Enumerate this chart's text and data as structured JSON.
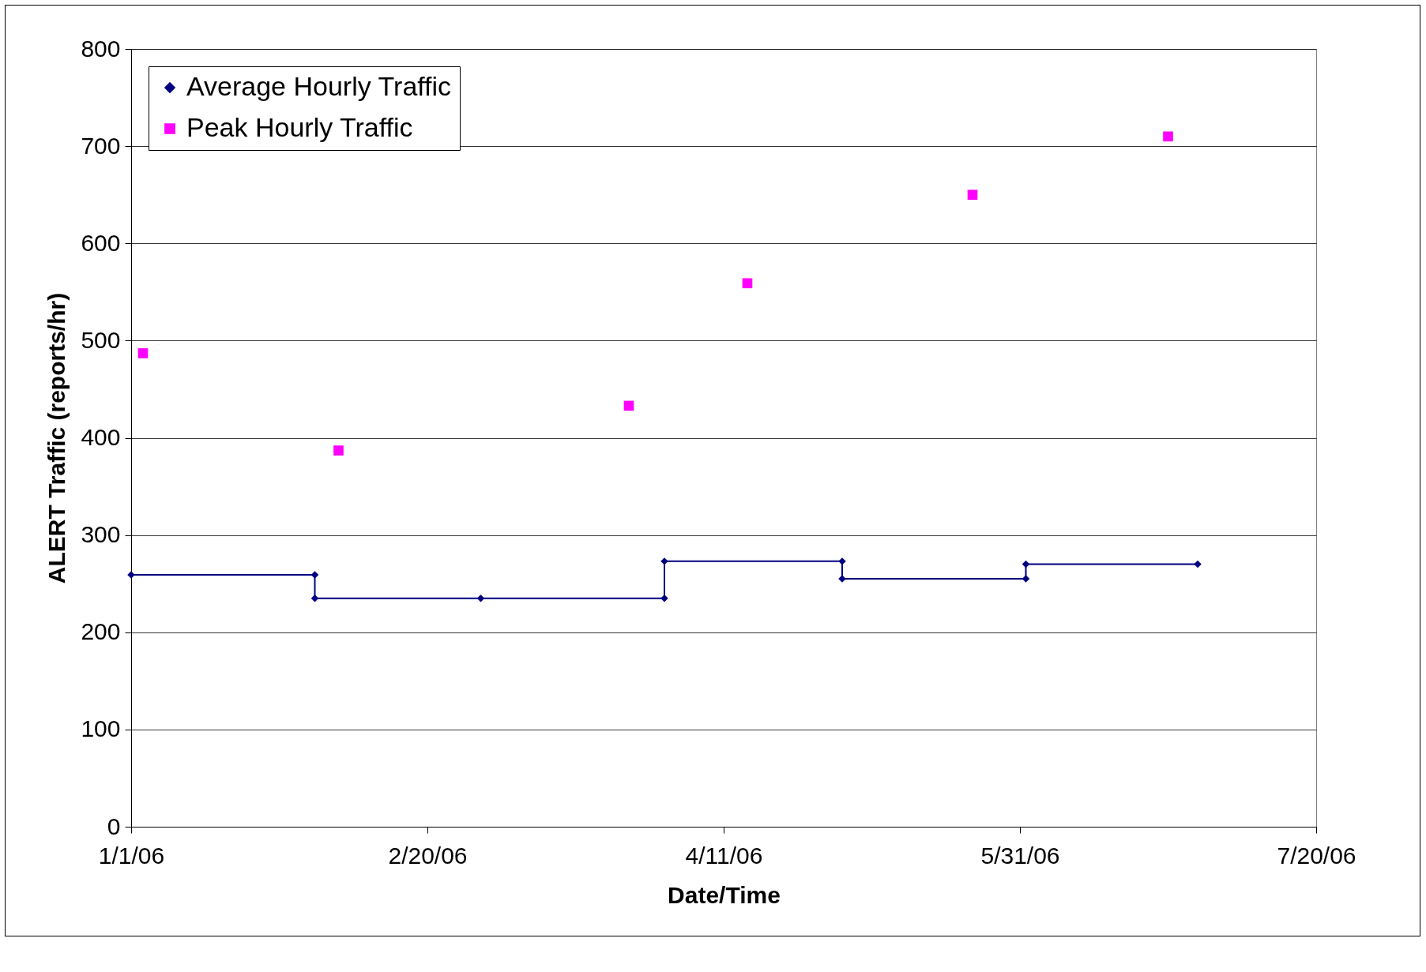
{
  "chart_data": {
    "type": "line",
    "xlabel": "Date/Time",
    "ylabel": "ALERT Traffic (reports/hr)",
    "xlim": [
      "2006-01-01",
      "2006-07-20"
    ],
    "xticks": [
      {
        "value": "2006-01-01",
        "label": "1/1/06"
      },
      {
        "value": "2006-02-20",
        "label": "2/20/06"
      },
      {
        "value": "2006-04-11",
        "label": "4/11/06"
      },
      {
        "value": "2006-05-31",
        "label": "5/31/06"
      },
      {
        "value": "2006-07-20",
        "label": "7/20/06"
      }
    ],
    "ylim": [
      0,
      800
    ],
    "yticks": [
      0,
      100,
      200,
      300,
      400,
      500,
      600,
      700,
      800
    ],
    "grid": "y",
    "legend": "top left",
    "series": [
      {
        "name": "Average Hourly Traffic",
        "type": "line",
        "color": "#000080",
        "marker": "diamond",
        "line_style": "solid",
        "x": [
          "2006-01-01",
          "2006-02-01",
          "2006-02-01",
          "2006-03-01",
          "2006-04-01",
          "2006-04-01",
          "2006-05-01",
          "2006-05-01",
          "2006-06-01",
          "2006-06-01",
          "2006-06-30"
        ],
        "values": [
          259,
          259,
          235,
          235,
          235,
          273,
          273,
          255,
          255,
          270,
          270
        ]
      },
      {
        "name": "Peak Hourly Traffic",
        "type": "scatter",
        "color": "#ff00ff",
        "marker": "square",
        "x": [
          "2006-01-03",
          "2006-02-05",
          "2006-03-26",
          "2006-04-15",
          "2006-05-23",
          "2006-06-25"
        ],
        "values": [
          487,
          387,
          433,
          559,
          650,
          710
        ]
      }
    ]
  }
}
